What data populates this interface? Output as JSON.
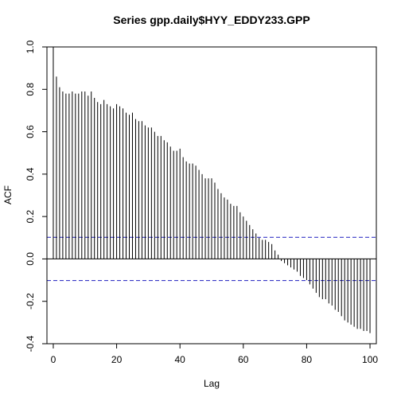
{
  "chart_data": {
    "type": "bar",
    "title": "Series  gpp.daily$HYY_EDDY233.GPP",
    "xlabel": "Lag",
    "ylabel": "ACF",
    "xlim": [
      -2,
      102
    ],
    "ylim": [
      -0.4,
      1.0
    ],
    "x_ticks": [
      "0",
      "20",
      "40",
      "60",
      "80",
      "100"
    ],
    "y_ticks": [
      "-0.4",
      "-0.2",
      "0.0",
      "0.2",
      "0.4",
      "0.6",
      "0.8",
      "1.0"
    ],
    "confidence_bound": 0.102,
    "lags": [
      0,
      1,
      2,
      3,
      4,
      5,
      6,
      7,
      8,
      9,
      10,
      11,
      12,
      13,
      14,
      15,
      16,
      17,
      18,
      19,
      20,
      21,
      22,
      23,
      24,
      25,
      26,
      27,
      28,
      29,
      30,
      31,
      32,
      33,
      34,
      35,
      36,
      37,
      38,
      39,
      40,
      41,
      42,
      43,
      44,
      45,
      46,
      47,
      48,
      49,
      50,
      51,
      52,
      53,
      54,
      55,
      56,
      57,
      58,
      59,
      60,
      61,
      62,
      63,
      64,
      65,
      66,
      67,
      68,
      69,
      70,
      71,
      72,
      73,
      74,
      75,
      76,
      77,
      78,
      79,
      80,
      81,
      82,
      83,
      84,
      85,
      86,
      87,
      88,
      89,
      90,
      91,
      92,
      93,
      94,
      95,
      96,
      97,
      98,
      99,
      100
    ],
    "acf": [
      1.0,
      0.86,
      0.81,
      0.79,
      0.78,
      0.78,
      0.79,
      0.78,
      0.78,
      0.79,
      0.79,
      0.77,
      0.79,
      0.76,
      0.74,
      0.73,
      0.75,
      0.73,
      0.72,
      0.71,
      0.73,
      0.72,
      0.71,
      0.69,
      0.68,
      0.69,
      0.66,
      0.65,
      0.65,
      0.63,
      0.62,
      0.62,
      0.6,
      0.58,
      0.58,
      0.56,
      0.55,
      0.53,
      0.51,
      0.51,
      0.52,
      0.48,
      0.46,
      0.45,
      0.45,
      0.44,
      0.42,
      0.4,
      0.38,
      0.38,
      0.38,
      0.36,
      0.33,
      0.31,
      0.29,
      0.28,
      0.26,
      0.25,
      0.25,
      0.22,
      0.2,
      0.18,
      0.16,
      0.14,
      0.12,
      0.1,
      0.09,
      0.09,
      0.08,
      0.07,
      0.04,
      0.02,
      -0.01,
      -0.02,
      -0.03,
      -0.04,
      -0.05,
      -0.06,
      -0.08,
      -0.09,
      -0.1,
      -0.12,
      -0.14,
      -0.16,
      -0.18,
      -0.19,
      -0.19,
      -0.21,
      -0.22,
      -0.24,
      -0.25,
      -0.27,
      -0.29,
      -0.3,
      -0.31,
      -0.32,
      -0.33,
      -0.33,
      -0.34,
      -0.34,
      -0.35
    ],
    "colors": {
      "bars": "#000000",
      "bounds": "#1f1fbf",
      "axes": "#000000"
    }
  }
}
